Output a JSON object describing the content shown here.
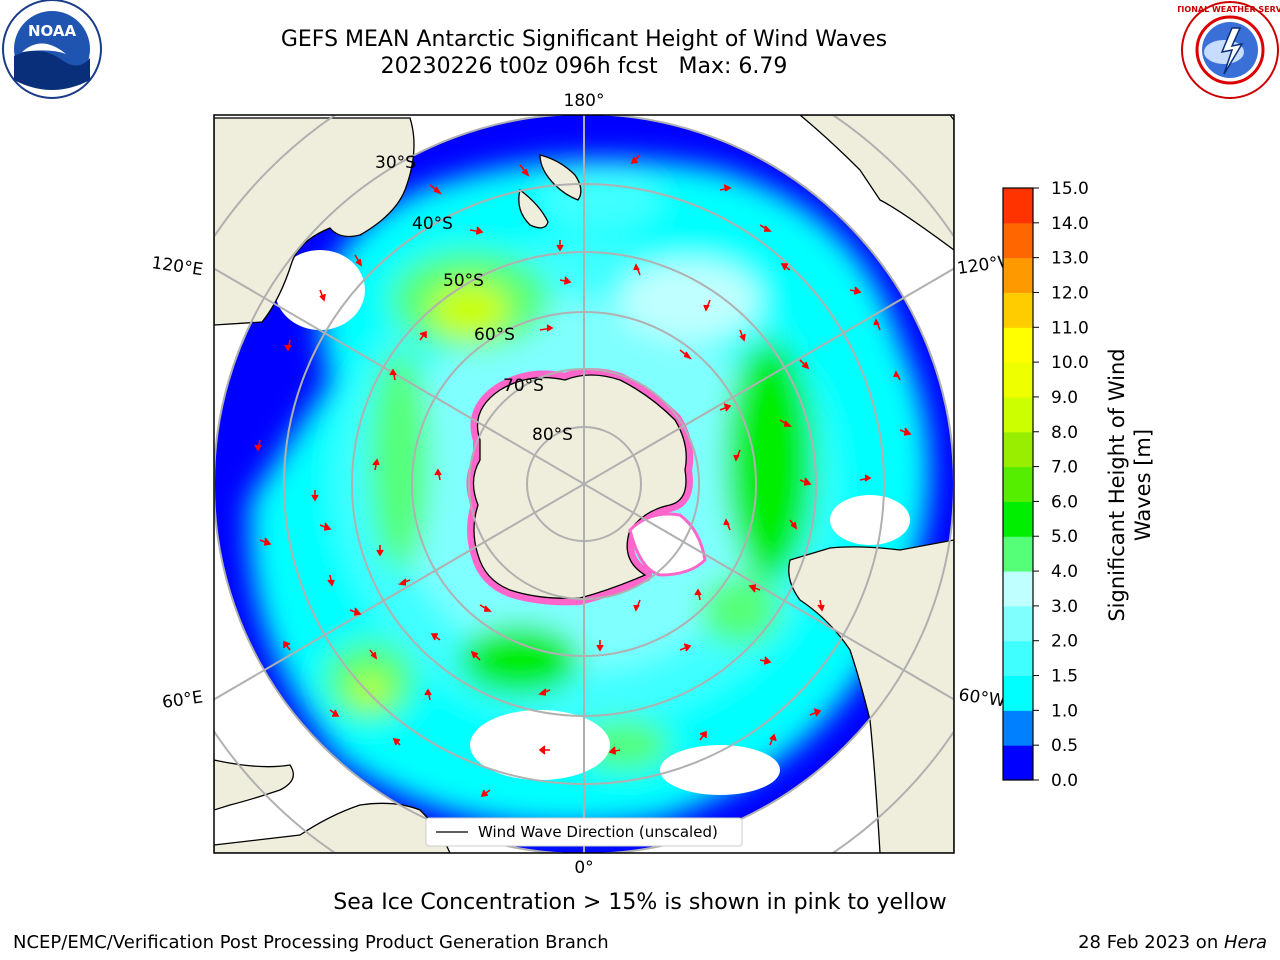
{
  "title": {
    "line1": "GEFS MEAN Antarctic Significant Height of Wind Waves",
    "line2": "20230226 t00z 096h fcst   Max: 6.79"
  },
  "map": {
    "projection": "south-polar-stereographic",
    "lat_labels": [
      "30°S",
      "40°S",
      "50°S",
      "60°S",
      "70°S",
      "80°S"
    ],
    "lon_labels": {
      "top": "180°",
      "bottom": "0°",
      "left_upper": "120°E",
      "left_lower": "60°E",
      "right_upper": "120°W",
      "right_lower": "60°W"
    },
    "colors": {
      "land": "#efeedc",
      "coast": "#000000",
      "graticule": "#b0b0b0",
      "arrow": "#ff0000"
    },
    "legend_label": "Wind Wave Direction (unscaled)",
    "legend_placement": "lower-center"
  },
  "colorbar": {
    "label_line1": "Significant Height of Wind",
    "label_line2": "Waves [m]",
    "ticks": [
      "0.0",
      "0.5",
      "1.0",
      "1.5",
      "2.0",
      "3.0",
      "4.0",
      "5.0",
      "6.0",
      "7.0",
      "8.0",
      "9.0",
      "10.0",
      "11.0",
      "12.0",
      "13.0",
      "14.0",
      "15.0"
    ],
    "colors": [
      "#0000ff",
      "#0080ff",
      "#00ffff",
      "#40ffff",
      "#80ffff",
      "#c0ffff",
      "#55ff77",
      "#00ee00",
      "#55ee00",
      "#99ee00",
      "#ccff00",
      "#eeff00",
      "#ffff00",
      "#ffcc00",
      "#ff9900",
      "#ff6600",
      "#ff3300",
      "#ff0000"
    ]
  },
  "footer": {
    "note": "Sea Ice Concentration > 15% is shown in pink to yellow",
    "credit_left": "NCEP/EMC/Verification Post Processing Product Generation Branch",
    "credit_right_prefix": "28 Feb 2023 on ",
    "credit_right_italic": "Hera"
  },
  "logos": {
    "left": "NOAA",
    "right": "NATIONAL WEATHER SERVICE"
  }
}
